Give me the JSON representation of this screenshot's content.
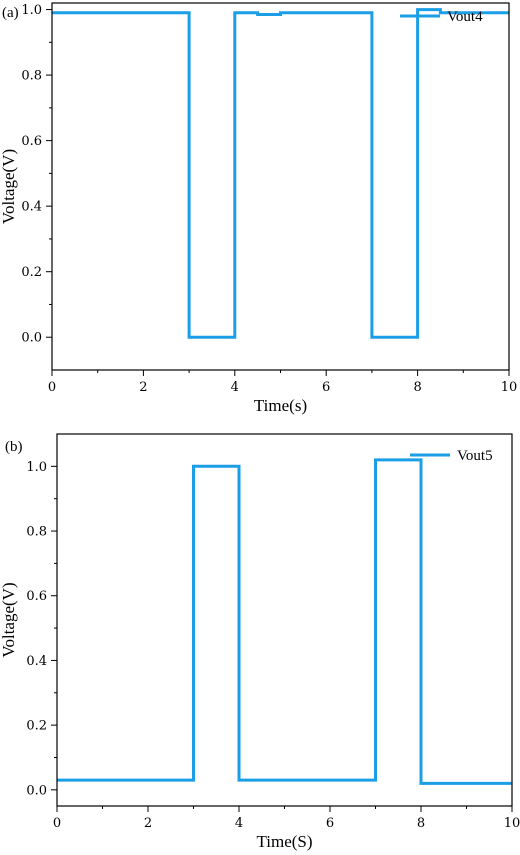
{
  "chart_data": [
    {
      "type": "line",
      "panel_label": "(a)",
      "xlabel": "Time(s)",
      "ylabel": "Voltage(V)",
      "xlim": [
        0,
        10
      ],
      "ylim": [
        -0.1,
        1.02
      ],
      "x_ticks": [
        0,
        2,
        4,
        6,
        8,
        10
      ],
      "x_tick_labels": [
        "0",
        "2",
        "4",
        "6",
        "8",
        "10"
      ],
      "y_ticks": [
        0.0,
        0.2,
        0.4,
        0.6,
        0.8,
        1.0
      ],
      "y_tick_labels": [
        "0.0",
        "0.2",
        "0.4",
        "0.6",
        "0.8",
        "1.0"
      ],
      "legend_position": "top-right",
      "grid": false,
      "series": [
        {
          "name": "Vout4",
          "color": "#1a9ee6",
          "step": true,
          "x": [
            0,
            3,
            3,
            4,
            4,
            4.5,
            4.5,
            5,
            5,
            7,
            7,
            8,
            8,
            8.5,
            8.5,
            10
          ],
          "y": [
            0.99,
            0.99,
            0.0,
            0.0,
            0.99,
            0.99,
            0.985,
            0.985,
            0.99,
            0.99,
            0.0,
            0.0,
            1.0,
            1.0,
            0.99,
            0.99
          ]
        }
      ]
    },
    {
      "type": "line",
      "panel_label": "(b)",
      "xlabel": "Time(S)",
      "ylabel": "Voltage(V)",
      "xlim": [
        0,
        10
      ],
      "ylim": [
        -0.05,
        1.1
      ],
      "x_ticks": [
        0,
        2,
        4,
        6,
        8,
        10
      ],
      "x_tick_labels": [
        "0",
        "2",
        "4",
        "6",
        "8",
        "10"
      ],
      "y_ticks": [
        0.0,
        0.2,
        0.4,
        0.6,
        0.8,
        1.0
      ],
      "y_tick_labels": [
        "0.0",
        "0.2",
        "0.4",
        "0.6",
        "0.8",
        "1.0"
      ],
      "legend_position": "top-right",
      "grid": false,
      "series": [
        {
          "name": "Vout5",
          "color": "#1a9ee6",
          "step": true,
          "x": [
            0,
            3,
            3,
            4,
            4,
            7,
            7,
            8,
            8,
            10
          ],
          "y": [
            0.03,
            0.03,
            1.0,
            1.0,
            0.03,
            0.03,
            1.02,
            1.02,
            0.02,
            0.02
          ]
        }
      ]
    }
  ]
}
